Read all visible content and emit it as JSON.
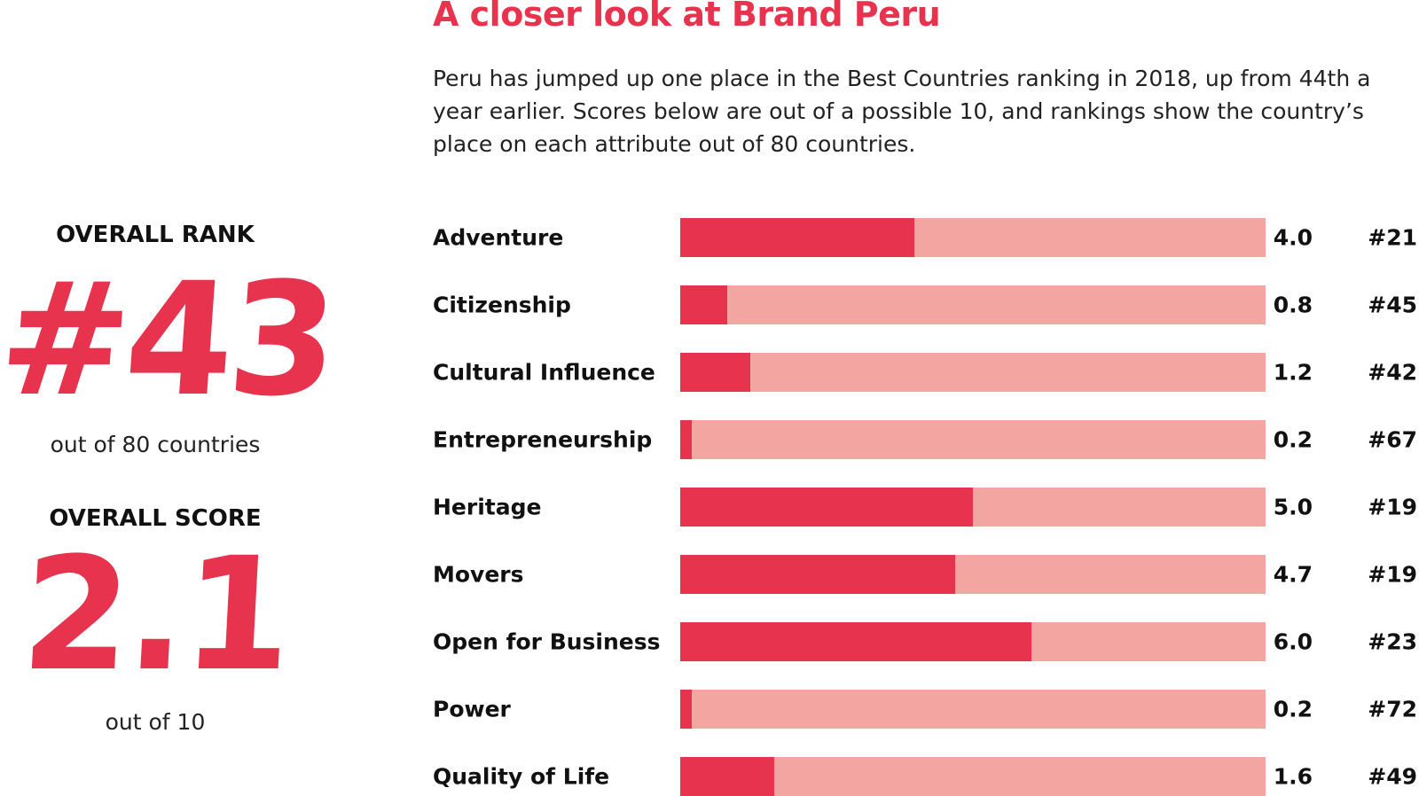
{
  "title": "A closer look at Brand Peru",
  "intro": "Peru has jumped up one place in the Best Countries ranking in 2018, up from 44th a year earlier. Scores below are out of a possible 10, and rankings show the country’s place on each attribute out of 80 countries.",
  "overall": {
    "rank_label": "OVERALL RANK",
    "rank_value": "#43",
    "rank_sub": "out of 80 countries",
    "score_label": "OVERALL SCORE",
    "score_value": "2.1",
    "score_sub": "out of 10"
  },
  "colors": {
    "accent": "#e8334f",
    "bar_background": "#f3a6a1"
  },
  "chart_data": {
    "type": "bar",
    "orientation": "horizontal",
    "xlim": [
      0,
      10
    ],
    "categories": [
      "Adventure",
      "Citizenship",
      "Cultural Influence",
      "Entrepreneurship",
      "Heritage",
      "Movers",
      "Open for Business",
      "Power",
      "Quality of Life"
    ],
    "values": [
      4.0,
      0.8,
      1.2,
      0.2,
      5.0,
      4.7,
      6.0,
      0.2,
      1.6
    ],
    "score_labels": [
      "4.0",
      "0.8",
      "1.2",
      "0.2",
      "5.0",
      "4.7",
      "6.0",
      "0.2",
      "1.6"
    ],
    "rank_labels": [
      "#21",
      "#45",
      "#42",
      "#67",
      "#19",
      "#19",
      "#23",
      "#72",
      "#49"
    ]
  }
}
